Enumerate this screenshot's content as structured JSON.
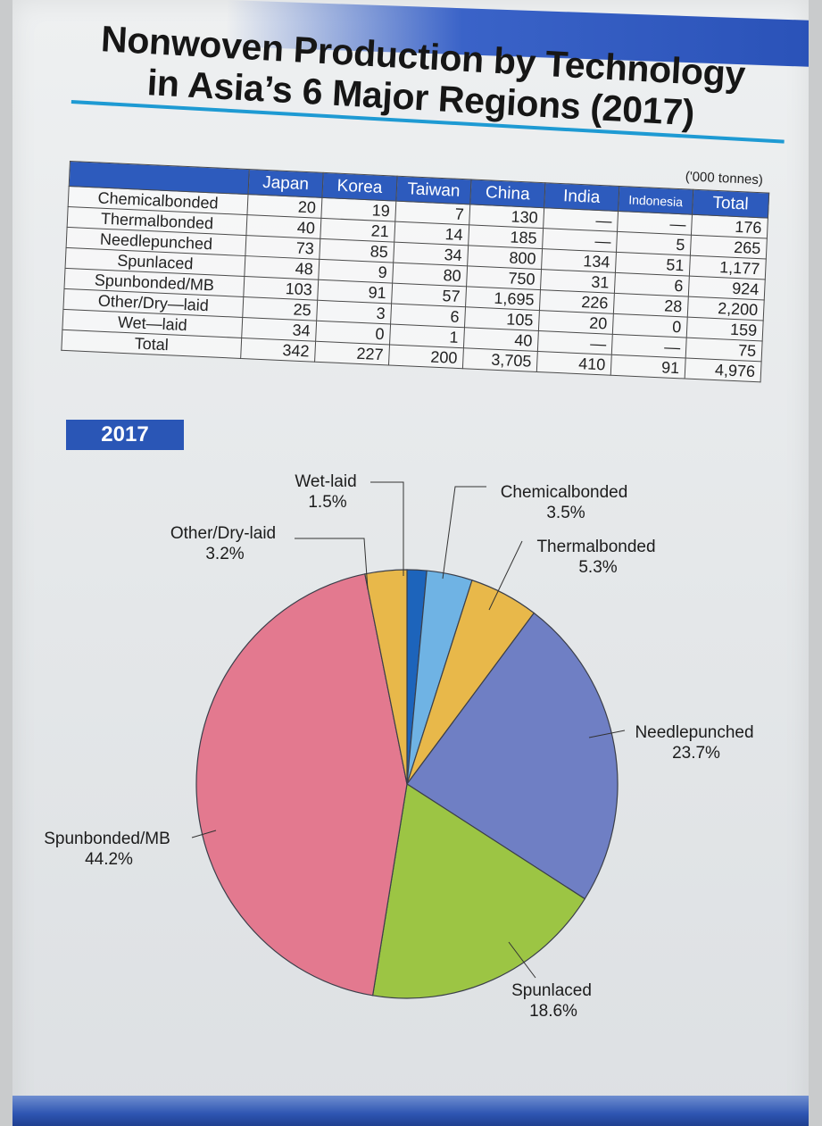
{
  "title": "Nonwoven Production by Technology in Asia’s 6 Major Regions (2017)",
  "title_lines": [
    "Nonwoven Production by Technology",
    "in Asia’s 6 Major Regions (2017)"
  ],
  "unit": "('000 tonnes)",
  "table": {
    "columns": [
      "Japan",
      "Korea",
      "Taiwan",
      "China",
      "India",
      "Indonesia",
      "Total"
    ],
    "rows": [
      {
        "label": "Chemicalbonded",
        "values": [
          "20",
          "19",
          "7",
          "130",
          "—",
          "—",
          "176"
        ]
      },
      {
        "label": "Thermalbonded",
        "values": [
          "40",
          "21",
          "14",
          "185",
          "—",
          "5",
          "265"
        ]
      },
      {
        "label": "Needlepunched",
        "values": [
          "73",
          "85",
          "34",
          "800",
          "134",
          "51",
          "1,177"
        ]
      },
      {
        "label": "Spunlaced",
        "values": [
          "48",
          "9",
          "80",
          "750",
          "31",
          "6",
          "924"
        ]
      },
      {
        "label": "Spunbonded/MB",
        "values": [
          "103",
          "91",
          "57",
          "1,695",
          "226",
          "28",
          "2,200"
        ]
      },
      {
        "label": "Other/Dry—laid",
        "values": [
          "25",
          "3",
          "6",
          "105",
          "20",
          "0",
          "159"
        ]
      },
      {
        "label": "Wet—laid",
        "values": [
          "34",
          "0",
          "1",
          "40",
          "—",
          "—",
          "75"
        ]
      },
      {
        "label": "Total",
        "values": [
          "342",
          "227",
          "200",
          "3,705",
          "410",
          "91",
          "4,976"
        ]
      }
    ]
  },
  "year_badge": "2017",
  "colors": {
    "Chemicalbonded": "#6fb3e4",
    "Thermalbonded": "#e8b84a",
    "Needlepunched": "#6f7fc4",
    "Spunlaced": "#9cc544",
    "Spunbonded/MB": "#e3798f",
    "Other/Dry-laid": "#e8b84a",
    "Wet-laid": "#1d64bb"
  },
  "chart_data": {
    "type": "pie",
    "title": "2017",
    "slices": [
      {
        "label": "Wet-laid",
        "value": 1.5,
        "display": "1.5%"
      },
      {
        "label": "Chemicalbonded",
        "value": 3.5,
        "display": "3.5%"
      },
      {
        "label": "Thermalbonded",
        "value": 5.3,
        "display": "5.3%"
      },
      {
        "label": "Needlepunched",
        "value": 23.7,
        "display": "23.7%"
      },
      {
        "label": "Spunlaced",
        "value": 18.6,
        "display": "18.6%"
      },
      {
        "label": "Spunbonded/MB",
        "value": 44.2,
        "display": "44.2%"
      },
      {
        "label": "Other/Dry-laid",
        "value": 3.2,
        "display": "3.2%"
      }
    ],
    "start": "12 o'clock",
    "direction": "clockwise"
  }
}
